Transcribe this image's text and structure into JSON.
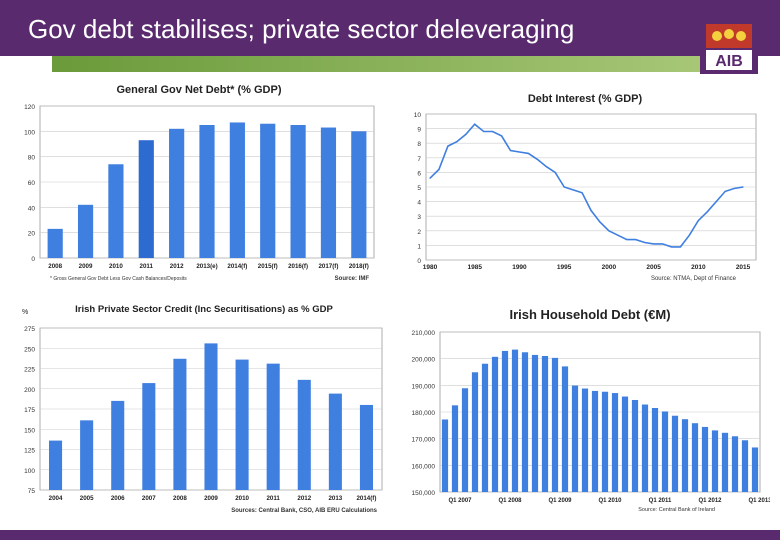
{
  "slide": {
    "title": "Gov debt stabilises; private sector deleveraging",
    "logo_text": "AIB",
    "colors": {
      "header": "#5a2a6e",
      "green": "#8ab35a",
      "bar": "#3f7fe0",
      "bar_highlight": "#2e6bd1"
    }
  },
  "chart_data": [
    {
      "type": "bar",
      "title": "General Gov Net Debt* (% GDP)",
      "categories": [
        "2008",
        "2009",
        "2010",
        "2011",
        "2012",
        "2013(e)",
        "2014(f)",
        "2015(f)",
        "2016(f)",
        "2017(f)",
        "2018(f)"
      ],
      "values": [
        23,
        42,
        74,
        93,
        102,
        105,
        107,
        106,
        105,
        103,
        100
      ],
      "ylim": [
        0,
        120
      ],
      "yticks": [
        0,
        20,
        40,
        60,
        80,
        100,
        120
      ],
      "footnote": "* Gross General Gov Debt Less Gov Cash Balances/Deposits",
      "source": "Source: IMF",
      "grid": true
    },
    {
      "type": "line",
      "title": "Debt Interest (% GDP)",
      "x": [
        1980,
        1981,
        1982,
        1983,
        1984,
        1985,
        1986,
        1987,
        1988,
        1989,
        1990,
        1991,
        1992,
        1993,
        1994,
        1995,
        1996,
        1997,
        1998,
        1999,
        2000,
        2001,
        2002,
        2003,
        2004,
        2005,
        2006,
        2007,
        2008,
        2009,
        2010,
        2011,
        2012,
        2013,
        2014,
        2015
      ],
      "y": [
        5.6,
        6.2,
        7.8,
        8.1,
        8.6,
        9.3,
        8.8,
        8.8,
        8.5,
        7.5,
        7.4,
        7.3,
        6.9,
        6.4,
        6.0,
        5.0,
        4.8,
        4.6,
        3.4,
        2.6,
        2.0,
        1.7,
        1.4,
        1.4,
        1.2,
        1.1,
        1.1,
        0.9,
        0.9,
        1.7,
        2.7,
        3.3,
        4.0,
        4.7,
        4.9,
        5.0
      ],
      "xticks": [
        1980,
        1985,
        1990,
        1995,
        2000,
        2005,
        2010,
        2015
      ],
      "ylim": [
        0,
        10
      ],
      "yticks": [
        0,
        1,
        2,
        3,
        4,
        5,
        6,
        7,
        8,
        9,
        10
      ],
      "source": "Source: NTMA, Dept of Finance",
      "grid": true
    },
    {
      "type": "bar",
      "title": "Irish Private Sector Credit (Inc Securitisations) as % GDP",
      "ylabel": "%",
      "categories": [
        "2004",
        "2005",
        "2006",
        "2007",
        "2008",
        "2009",
        "2010",
        "2011",
        "2012",
        "2013",
        "2014(f)"
      ],
      "values": [
        136,
        161,
        185,
        207,
        237,
        256,
        236,
        231,
        211,
        194,
        180
      ],
      "ylim": [
        75,
        275
      ],
      "yticks": [
        75,
        100,
        125,
        150,
        175,
        200,
        225,
        250,
        275
      ],
      "source": "Sources: Central Bank, CSO, AIB ERU Calculations",
      "grid": true
    },
    {
      "type": "bar",
      "title": "Irish Household Debt (€M)",
      "values": [
        177200,
        182500,
        188900,
        194900,
        198100,
        200700,
        202900,
        203400,
        202400,
        201400,
        201000,
        200300,
        197100,
        189900,
        188800,
        187900,
        187600,
        187100,
        185800,
        184500,
        182800,
        181500,
        180200,
        178600,
        177300,
        175800,
        174400,
        173100,
        172200,
        170900,
        169400,
        166700
      ],
      "category_labels": [
        "Q1 2007",
        "Q1 2008",
        "Q1 2009",
        "Q1 2010",
        "Q1 2011",
        "Q1 2012",
        "Q1 2013"
      ],
      "ylim": [
        150000,
        210000
      ],
      "yticks": [
        "150,000",
        "160,000",
        "170,000",
        "180,000",
        "190,000",
        "200,000",
        "210,000"
      ],
      "source": "Source: Central Bank of Ireland",
      "grid": true
    }
  ]
}
